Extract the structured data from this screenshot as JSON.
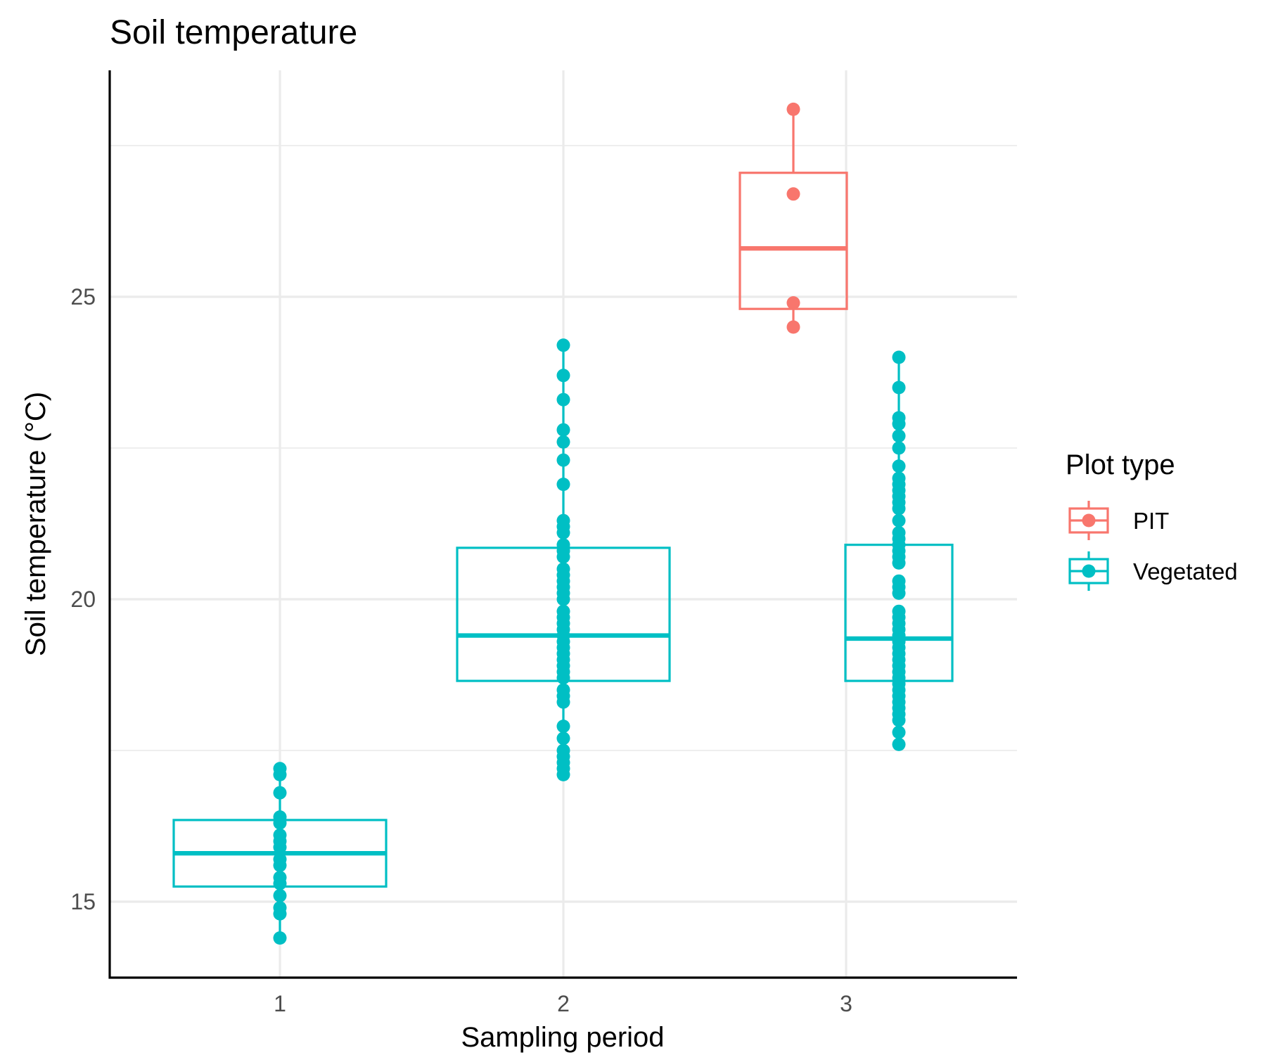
{
  "chart_data": {
    "type": "box",
    "title": "Soil temperature",
    "xlabel": "Sampling period",
    "ylabel": "Soil temperature (°C)",
    "categories": [
      "1",
      "2",
      "3"
    ],
    "ylim": [
      13.7,
      28.8
    ],
    "y_ticks": [
      15,
      20,
      25
    ],
    "y_minor_ticks": [
      17.5,
      22.5,
      27.5
    ],
    "grid": true,
    "legend": {
      "title": "Plot type",
      "position": "right"
    },
    "series": [
      {
        "name": "PIT",
        "color": "#F8766D",
        "boxes": [
          {
            "category": "3",
            "dodge": "left",
            "whisker_low": 24.5,
            "q1": 24.8,
            "median": 25.8,
            "q3": 27.05,
            "whisker_high": 28.1,
            "points": [
              24.5,
              24.9,
              26.7,
              28.1
            ]
          }
        ]
      },
      {
        "name": "Vegetated",
        "color": "#00BFC4",
        "boxes": [
          {
            "category": "1",
            "dodge": "single",
            "whisker_low": 14.4,
            "q1": 15.25,
            "median": 15.8,
            "q3": 16.35,
            "whisker_high": 17.2,
            "points": [
              14.4,
              14.8,
              14.9,
              15.1,
              15.3,
              15.4,
              15.6,
              15.7,
              15.9,
              16.0,
              16.1,
              16.3,
              16.4,
              16.8,
              17.1,
              17.2
            ]
          },
          {
            "category": "2",
            "dodge": "single",
            "whisker_low": 17.1,
            "q1": 18.65,
            "median": 19.4,
            "q3": 20.85,
            "whisker_high": 24.2,
            "points": [
              17.1,
              17.2,
              17.3,
              17.4,
              17.5,
              17.7,
              17.9,
              18.3,
              18.4,
              18.5,
              18.7,
              18.8,
              18.9,
              19.0,
              19.1,
              19.2,
              19.3,
              19.4,
              19.5,
              19.6,
              19.7,
              19.8,
              20.0,
              20.1,
              20.2,
              20.3,
              20.4,
              20.5,
              20.7,
              20.8,
              20.9,
              21.1,
              21.2,
              21.3,
              21.9,
              22.3,
              22.6,
              22.8,
              23.3,
              23.7,
              24.2
            ]
          },
          {
            "category": "3",
            "dodge": "right",
            "whisker_low": 17.6,
            "q1": 18.65,
            "median": 19.35,
            "q3": 20.9,
            "whisker_high": 24.0,
            "points": [
              17.6,
              17.8,
              18.0,
              18.1,
              18.2,
              18.3,
              18.4,
              18.5,
              18.6,
              18.7,
              18.8,
              18.9,
              19.0,
              19.1,
              19.2,
              19.3,
              19.4,
              19.5,
              19.6,
              19.7,
              19.8,
              20.1,
              20.2,
              20.3,
              20.6,
              20.7,
              20.8,
              20.9,
              21.0,
              21.1,
              21.3,
              21.5,
              21.6,
              21.7,
              21.8,
              21.9,
              22.0,
              22.2,
              22.5,
              22.7,
              22.9,
              23.0,
              23.5,
              24.0
            ]
          }
        ]
      }
    ]
  }
}
